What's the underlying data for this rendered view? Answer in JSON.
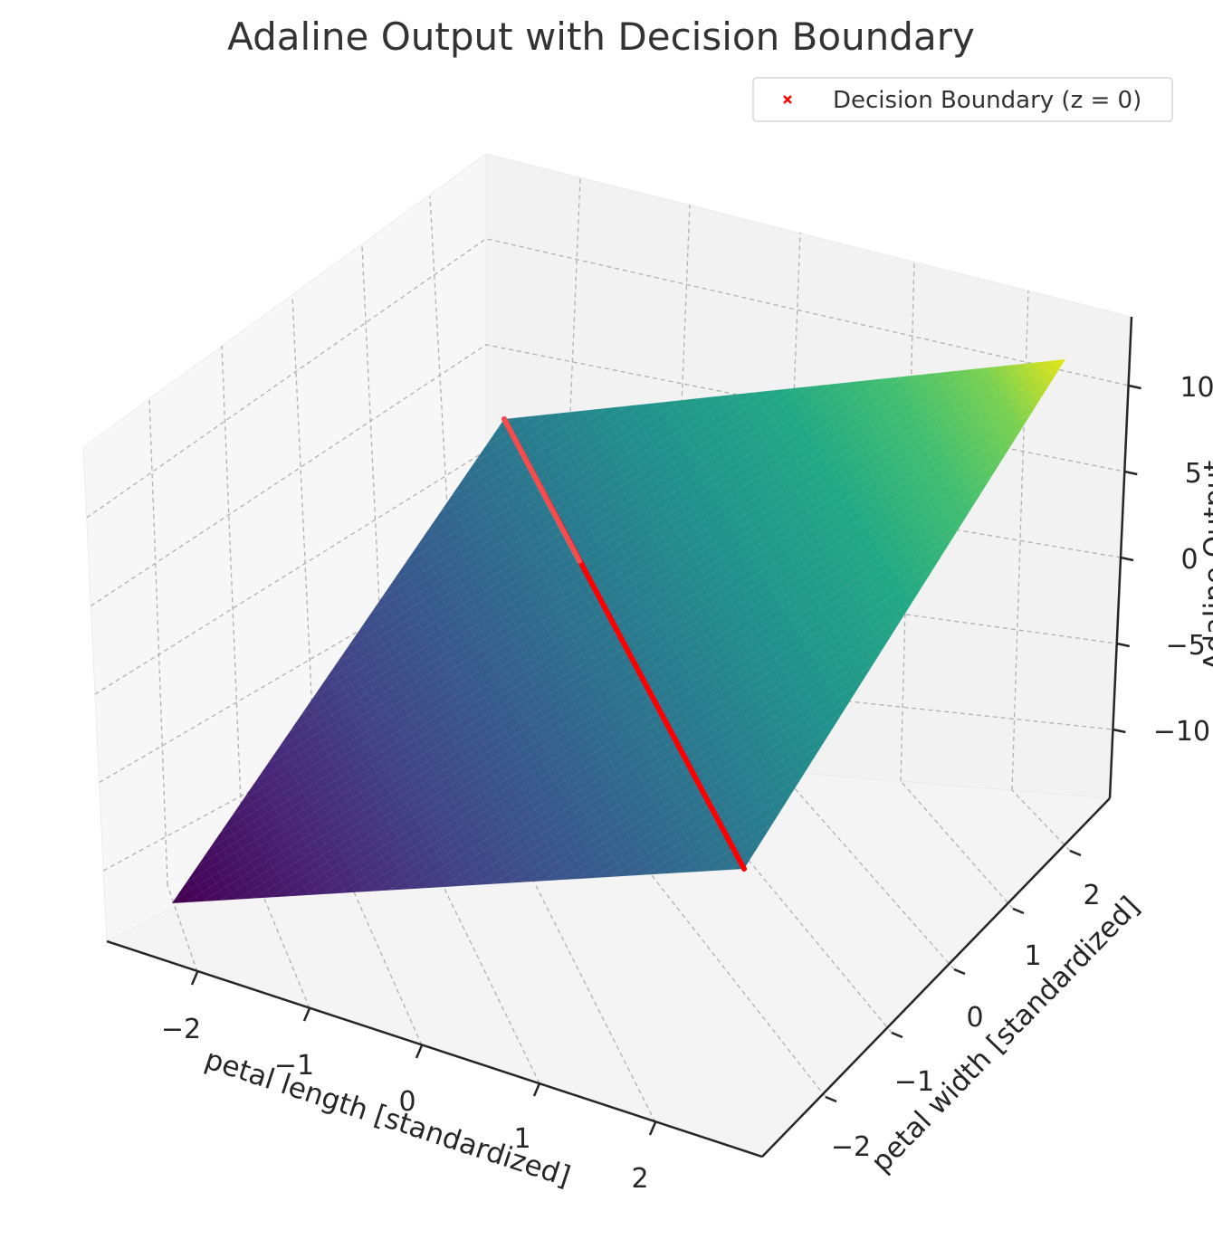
{
  "chart_data": {
    "type": "surface",
    "title": "Adaline Output with Decision Boundary",
    "xlabel": "petal length [standardized]",
    "ylabel": "petal width [standardized]",
    "zlabel": "Adaline Output",
    "x_ticks": [
      "−2",
      "−1",
      "0",
      "1",
      "2"
    ],
    "y_ticks": [
      "−2",
      "−1",
      "0",
      "1",
      "2"
    ],
    "z_ticks": [
      "10",
      "5",
      "0",
      "−5",
      "−10"
    ],
    "xlim": [
      -2.5,
      2.5
    ],
    "ylim": [
      -2.5,
      2.5
    ],
    "zlim": [
      -14,
      14
    ],
    "grid": true,
    "colormap": "viridis",
    "surface": {
      "x_range": [
        -2.2,
        2.6
      ],
      "y_range": [
        -2.1,
        2.5
      ],
      "z_corners": {
        "x_min_y_min": -12.1,
        "x_max_y_min": 0.2,
        "x_min_y_max": 0.3,
        "x_max_y_max": 12.0
      }
    },
    "decision_boundary": {
      "label": "Decision Boundary (z = 0)",
      "color": "#ff0000",
      "marker": "x",
      "x": [
        2.6,
        -2.2
      ],
      "y": [
        -2.1,
        2.5
      ],
      "z": [
        0,
        0
      ]
    },
    "legend": {
      "location": "top-right",
      "entries": [
        "Decision Boundary (z = 0)"
      ]
    }
  }
}
